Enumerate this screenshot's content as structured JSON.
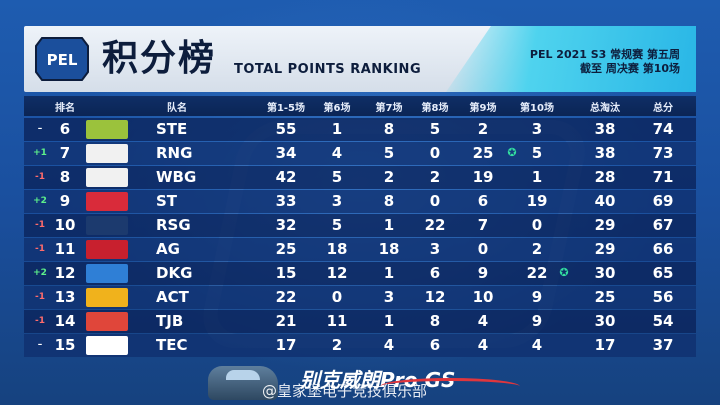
{
  "header": {
    "logo_text": "PEL",
    "title_cn": "积分榜",
    "title_en": "TOTAL POINTS RANKING",
    "season_line1": "PEL 2021 S3 常规赛 第五周",
    "season_line2": "截至 周决赛 第10场"
  },
  "columns": {
    "rank": "排名",
    "team": "队名",
    "g1_5": "第1-5场",
    "g6": "第6场",
    "g7": "第7场",
    "g8": "第8场",
    "g9": "第9场",
    "g10": "第10场",
    "elims": "总淘汰",
    "total": "总分"
  },
  "rows": [
    {
      "change": "–",
      "rank": "6",
      "team": "STE",
      "logo_color": "#9bc23c",
      "g15": "55",
      "g6": "1",
      "g7": "8",
      "g8": "5",
      "g9": "2",
      "g10": "3",
      "elims": "38",
      "total": "74"
    },
    {
      "change": "+1",
      "rank": "7",
      "team": "RNG",
      "logo_color": "#f1f1f1",
      "g15": "34",
      "g6": "4",
      "g7": "5",
      "g8": "0",
      "g9": "25",
      "g10": "5",
      "elims": "38",
      "total": "73",
      "medal_g9": true
    },
    {
      "change": "-1",
      "rank": "8",
      "team": "WBG",
      "logo_color": "#f1f1f1",
      "g15": "42",
      "g6": "5",
      "g7": "2",
      "g8": "2",
      "g9": "19",
      "g10": "1",
      "elims": "28",
      "total": "71"
    },
    {
      "change": "+2",
      "rank": "9",
      "team": "ST",
      "logo_color": "#d92b3a",
      "g15": "33",
      "g6": "3",
      "g7": "8",
      "g8": "0",
      "g9": "6",
      "g10": "19",
      "elims": "40",
      "total": "69"
    },
    {
      "change": "-1",
      "rank": "10",
      "team": "RSG",
      "logo_color": "#1c3a6e",
      "g15": "32",
      "g6": "5",
      "g7": "1",
      "g8": "22",
      "g9": "7",
      "g10": "0",
      "elims": "29",
      "total": "67"
    },
    {
      "change": "-1",
      "rank": "11",
      "team": "AG",
      "logo_color": "#c8202e",
      "g15": "25",
      "g6": "18",
      "g7": "18",
      "g8": "3",
      "g9": "0",
      "g10": "2",
      "elims": "29",
      "total": "66"
    },
    {
      "change": "+2",
      "rank": "12",
      "team": "DKG",
      "logo_color": "#2f7fd6",
      "g15": "15",
      "g6": "12",
      "g7": "1",
      "g8": "6",
      "g9": "9",
      "g10": "22",
      "elims": "30",
      "total": "65",
      "medal_g10": true
    },
    {
      "change": "-1",
      "rank": "13",
      "team": "ACT",
      "logo_color": "#f0b21c",
      "g15": "22",
      "g6": "0",
      "g7": "3",
      "g8": "12",
      "g9": "10",
      "g10": "9",
      "elims": "25",
      "total": "56"
    },
    {
      "change": "-1",
      "rank": "14",
      "team": "TJB",
      "logo_color": "#e0463a",
      "g15": "21",
      "g6": "11",
      "g7": "1",
      "g8": "8",
      "g9": "4",
      "g10": "9",
      "elims": "30",
      "total": "54"
    },
    {
      "change": "–",
      "rank": "15",
      "team": "TEC",
      "logo_color": "#ffffff",
      "g15": "17",
      "g6": "2",
      "g7": "4",
      "g8": "6",
      "g9": "4",
      "g10": "4",
      "elims": "17",
      "total": "37"
    }
  ],
  "medal_icon": "medal-icon",
  "footer": {
    "ad_text": "别克威朗Pro GS",
    "watermark": "@皇家堡电子竞技俱乐部"
  },
  "colors": {
    "up": "#5df08a",
    "down": "#ff6b6b",
    "accent": "#29b6e6"
  }
}
